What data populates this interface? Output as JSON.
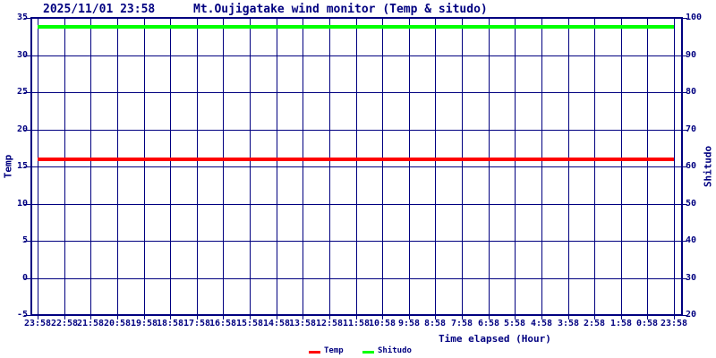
{
  "header": {
    "datetime": "2025/11/01 23:58",
    "title": "Mt.Oujigatake wind monitor (Temp & situdo)"
  },
  "chart_data": {
    "type": "line",
    "title": "Mt.Oujigatake wind monitor (Temp & situdo)",
    "timestamp": "2025/11/01 23:58",
    "xlabel": "Time elapsed (Hour)",
    "ylabel_left": "Temp",
    "ylabel_right": "Shitudo",
    "grid": true,
    "x_ticks": [
      "23:58",
      "22:58",
      "21:58",
      "20:58",
      "19:58",
      "18:58",
      "17:58",
      "16:58",
      "15:58",
      "14:58",
      "13:58",
      "12:58",
      "11:58",
      "10:58",
      "9:58",
      "8:58",
      "7:58",
      "6:58",
      "5:58",
      "4:58",
      "3:58",
      "2:58",
      "1:58",
      "0:58",
      "23:58"
    ],
    "y_left_ticks": [
      35,
      30,
      25,
      20,
      15,
      10,
      5,
      0,
      -5
    ],
    "y_left_range": [
      -5,
      35
    ],
    "y_right_ticks": [
      100,
      90,
      80,
      70,
      60,
      50,
      40,
      30,
      20
    ],
    "y_right_range": [
      20,
      100
    ],
    "series": [
      {
        "name": "Temp",
        "axis": "left",
        "color": "#ff0000",
        "values": [
          16,
          16,
          16,
          16,
          16,
          16,
          16,
          16,
          16,
          16,
          16,
          16,
          16,
          16,
          16,
          16,
          16,
          16,
          16,
          16,
          16,
          16,
          16,
          16,
          16
        ]
      },
      {
        "name": "Shitudo",
        "axis": "right",
        "color": "#00ff00",
        "values": [
          97.5,
          97.5,
          97.5,
          97.5,
          97.5,
          97.5,
          97.5,
          97.5,
          97.5,
          97.5,
          97.5,
          97.5,
          97.5,
          97.5,
          97.5,
          97.5,
          97.5,
          97.5,
          97.5,
          97.5,
          97.5,
          97.5,
          97.5,
          97.5,
          97.5
        ]
      }
    ]
  },
  "legend": {
    "items": [
      {
        "label": "Temp",
        "color": "#ff0000"
      },
      {
        "label": "Shitudo",
        "color": "#00ff00"
      }
    ]
  },
  "colors": {
    "axis": "#000080",
    "background": "#ffffff",
    "temp": "#ff0000",
    "shitudo": "#00ff00"
  }
}
